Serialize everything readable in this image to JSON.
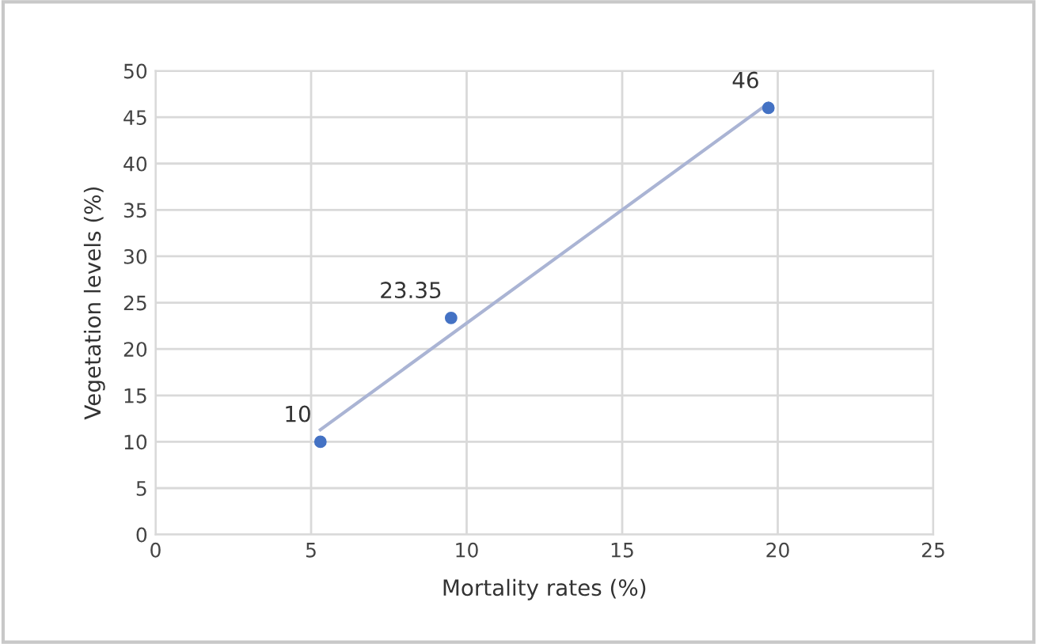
{
  "chart_data": {
    "type": "scatter",
    "xlabel": "Mortality rates (%)",
    "ylabel": "Vegetation levels (%)",
    "xlim": [
      0,
      25
    ],
    "xticks": [
      0,
      5,
      10,
      15,
      20,
      25
    ],
    "ylim": [
      0,
      50
    ],
    "yticks": [
      0,
      5,
      10,
      15,
      20,
      25,
      30,
      35,
      40,
      45,
      50
    ],
    "grid": true,
    "marker": "circle",
    "series": [
      {
        "color": "#4472c4",
        "x": [
          5.3,
          9.5,
          19.7
        ],
        "values": [
          10,
          23.35,
          46
        ],
        "value_labels": [
          "10",
          "23.35",
          "46"
        ]
      },
      {
        "type": "line",
        "color": "#aab4d4",
        "x": [
          5.3,
          19.7
        ],
        "values": [
          11.3,
          46.5
        ],
        "line_style": "solid",
        "marker": "none"
      }
    ]
  }
}
